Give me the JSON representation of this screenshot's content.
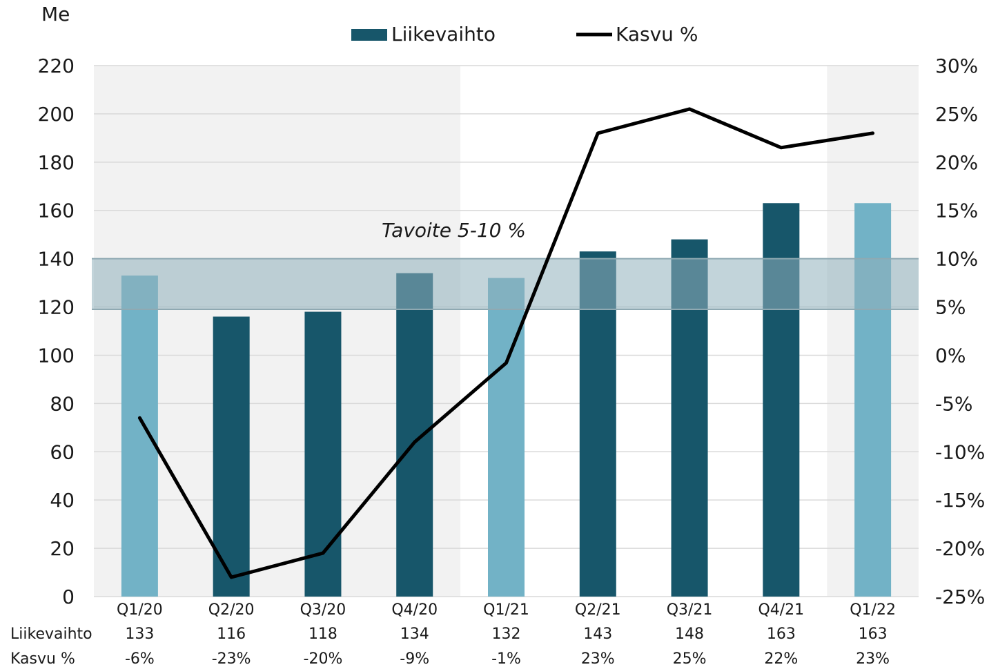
{
  "chart_data": {
    "type": "bar+line",
    "unit_label": "Me",
    "categories": [
      "Q1/20",
      "Q2/20",
      "Q3/20",
      "Q4/20",
      "Q1/21",
      "Q2/21",
      "Q3/21",
      "Q4/21",
      "Q1/22"
    ],
    "series": [
      {
        "name": "Liikevaihto",
        "type": "bar",
        "axis": "left",
        "values": [
          133,
          116,
          118,
          134,
          132,
          143,
          148,
          163,
          163
        ],
        "color": "#17566a",
        "highlight_color": "#72b2c6",
        "highlight_indices": [
          0,
          4,
          8
        ]
      },
      {
        "name": "Kasvu %",
        "type": "line",
        "axis": "right",
        "values": [
          -6.5,
          -23,
          -20.5,
          -9,
          -0.8,
          23,
          25.5,
          21.5,
          23
        ],
        "color": "#000000"
      }
    ],
    "y_left": {
      "ticks": [
        "220",
        "200",
        "180",
        "160",
        "140",
        "120",
        "100",
        "80",
        "60",
        "40",
        "20",
        "0"
      ],
      "range": [
        0,
        220
      ]
    },
    "y_right": {
      "ticks": [
        "30%",
        "25%",
        "20%",
        "15%",
        "10%",
        "5%",
        "0%",
        "-5%",
        "-10%",
        "-15%",
        "-20%",
        "-25%"
      ],
      "range": [
        -25,
        30
      ]
    },
    "target_band": {
      "label": "Tavoite 5-10 %",
      "range_left_axis": [
        119,
        140
      ],
      "color": "#8fb0bb"
    },
    "shaded_periods": [
      [
        0,
        3
      ],
      [
        8,
        8
      ]
    ],
    "shade_color": "#f2f2f2",
    "grid": true,
    "legend_position": "top-center",
    "table": {
      "rows": [
        {
          "label": "Liikevaihto",
          "values": [
            "133",
            "116",
            "118",
            "134",
            "132",
            "143",
            "148",
            "163",
            "163"
          ]
        },
        {
          "label": "Kasvu %",
          "values": [
            "-6%",
            "-23%",
            "-20%",
            "-9%",
            "-1%",
            "23%",
            "25%",
            "22%",
            "23%"
          ]
        }
      ]
    }
  }
}
